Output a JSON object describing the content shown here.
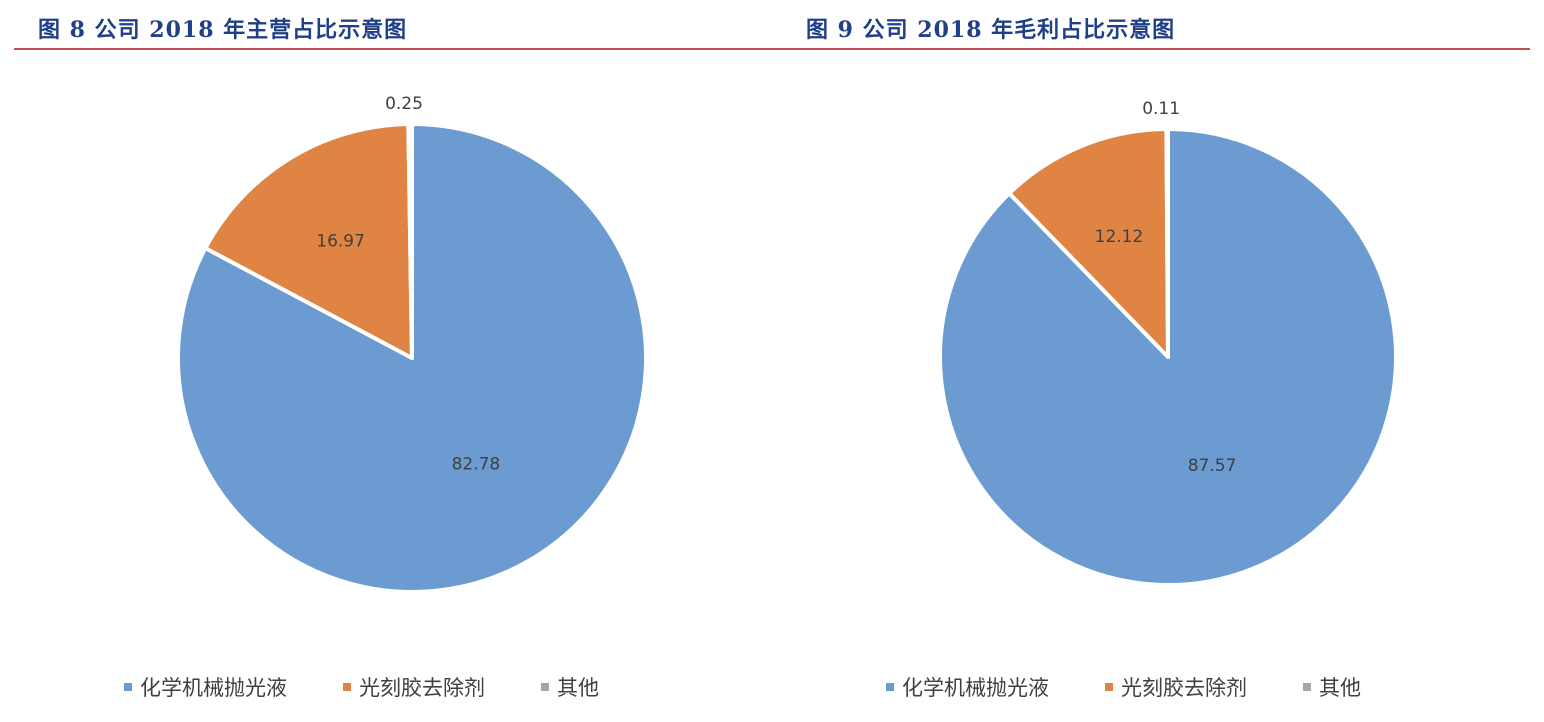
{
  "colors": {
    "title": "#1f3f86",
    "rule": "#c0504d",
    "series": [
      "#6b9bd1",
      "#e08443",
      "#a5a5a5"
    ],
    "label": "#404040"
  },
  "chart_data": [
    {
      "type": "pie",
      "title": "图 8 公司 2018 年主营占比示意图",
      "labels": [
        "化学机械抛光液",
        "光刻胶去除剂",
        "其他"
      ],
      "values": [
        82.78,
        16.97,
        0.25
      ],
      "data_labels": [
        "82.78",
        "16.97",
        "0.25"
      ],
      "start_angle_deg": 0,
      "direction": "clockwise",
      "legend_position": "bottom"
    },
    {
      "type": "pie",
      "title": "图 9 公司 2018 年毛利占比示意图",
      "labels": [
        "化学机械抛光液",
        "光刻胶去除剂",
        "其他"
      ],
      "values": [
        87.57,
        12.12,
        0.11
      ],
      "data_labels": [
        "87.57",
        "12.12",
        "0.11"
      ],
      "start_angle_deg": 0,
      "direction": "clockwise",
      "legend_position": "bottom"
    }
  ]
}
